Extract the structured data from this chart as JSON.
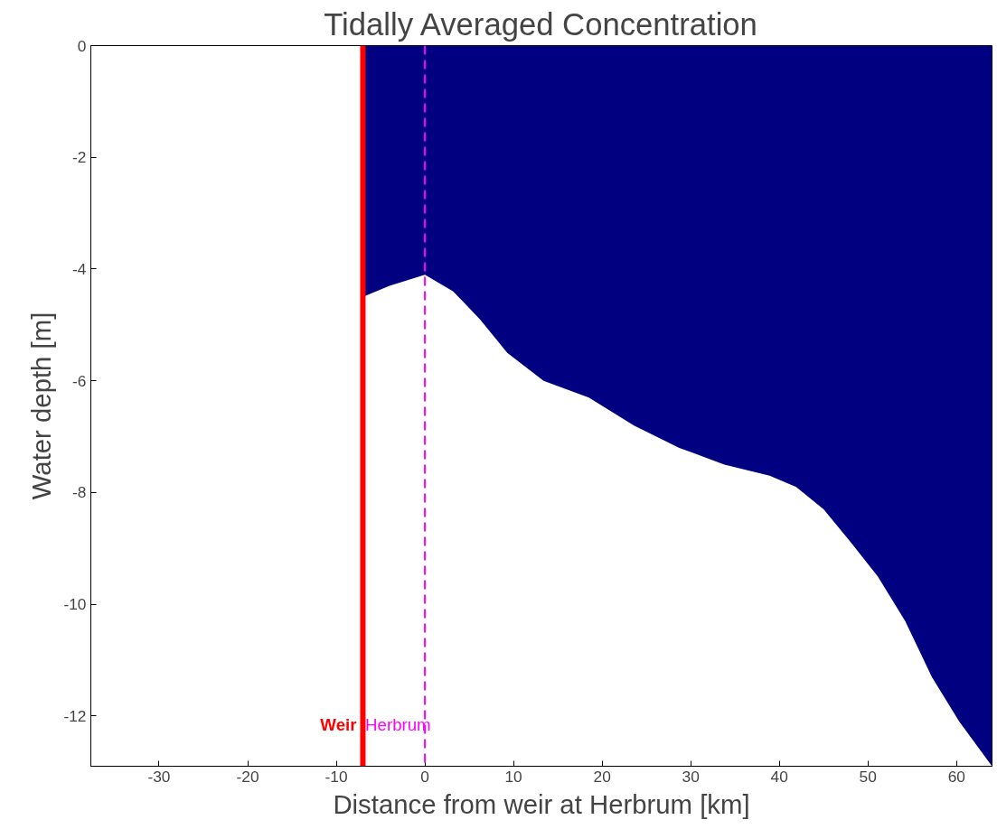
{
  "chart_data": {
    "type": "area",
    "title": "Tidally Averaged Concentration",
    "xlabel": "Distance from weir at Herbrum [km]",
    "ylabel": "Water depth [m]",
    "x": [
      -7,
      -4,
      0,
      3.2,
      6.2,
      9.3,
      13.4,
      18.5,
      23.6,
      28.7,
      33.8,
      38.9,
      41.9,
      45,
      48.1,
      51.1,
      54.2,
      57.2,
      60.3,
      64
    ],
    "series": [
      {
        "color": "#000080",
        "values": [
          -4.5,
          -4.3,
          -4.1,
          -4.4,
          -4.9,
          -5.5,
          -6.0,
          -6.3,
          -6.8,
          -7.2,
          -7.5,
          -7.7,
          -7.9,
          -8.3,
          -8.9,
          -9.5,
          -10.3,
          -11.3,
          -12.1,
          -12.9
        ]
      }
    ],
    "xlim": [
      -37.7,
      64
    ],
    "ylim": [
      -12.9,
      0
    ],
    "xticks": [
      -30,
      -20,
      -10,
      0,
      10,
      20,
      30,
      40,
      50,
      60
    ],
    "yticks": [
      0,
      -2,
      -4,
      -6,
      -8,
      -10,
      -12
    ],
    "ref_lines": [
      {
        "axis": "x",
        "value": -7,
        "label": "Weir",
        "color": "#ff0000",
        "line_style": "solid"
      },
      {
        "axis": "x",
        "value": 0,
        "label": "Herbrum",
        "color": "#ff00ff",
        "line_style": "dashed"
      }
    ],
    "grid": false
  }
}
